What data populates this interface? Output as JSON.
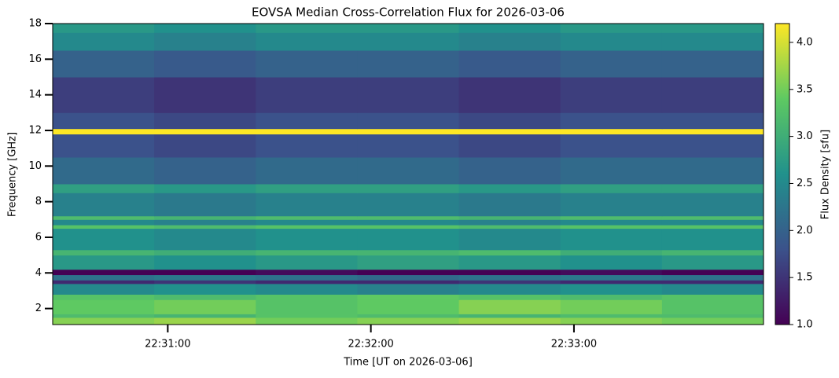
{
  "chart_data": {
    "type": "heatmap",
    "title": "EOVSA Median Cross-Correlation Flux for 2026-03-06",
    "x_label": "Time [UT on 2026-03-06]",
    "y_label": "Frequency [GHz]",
    "colorbar_label": "Flux Density [sfu]",
    "colormap": "viridis",
    "x_bins": [
      81026,
      81056,
      81086,
      81116,
      81146,
      81176,
      81206,
      81236
    ],
    "y_bins": [
      1.1,
      1.5,
      1.7,
      2.5,
      2.8,
      3.4,
      3.6,
      3.9,
      4.2,
      5.0,
      5.3,
      6.5,
      6.7,
      7.0,
      7.2,
      8.5,
      9.0,
      10.5,
      11.8,
      12.1,
      13.0,
      15.0,
      16.5,
      17.5,
      18.0
    ],
    "z": [
      [
        3.6,
        3.7,
        3.5,
        3.6,
        3.7,
        3.6,
        3.5
      ],
      [
        3.2,
        3.1,
        3.3,
        3.2,
        3.1,
        3.2,
        3.2
      ],
      [
        3.4,
        3.5,
        3.3,
        3.4,
        3.6,
        3.5,
        3.3
      ],
      [
        3.3,
        3.2,
        3.3,
        3.4,
        3.3,
        3.2,
        3.3
      ],
      [
        2.5,
        2.6,
        2.5,
        2.4,
        2.5,
        2.6,
        2.5
      ],
      [
        1.4,
        1.5,
        1.4,
        1.4,
        1.5,
        1.4,
        1.4
      ],
      [
        2.2,
        2.3,
        2.2,
        2.1,
        2.2,
        2.3,
        2.2
      ],
      [
        1.0,
        1.0,
        1.1,
        1.0,
        1.0,
        1.1,
        1.0
      ],
      [
        2.7,
        2.6,
        2.7,
        2.8,
        2.7,
        2.6,
        2.7
      ],
      [
        3.1,
        3.0,
        3.1,
        3.1,
        3.2,
        3.0,
        3.1
      ],
      [
        2.6,
        2.5,
        2.6,
        2.6,
        2.5,
        2.6,
        2.6
      ],
      [
        3.3,
        3.2,
        3.3,
        3.3,
        3.2,
        3.3,
        3.3
      ],
      [
        2.5,
        2.4,
        2.5,
        2.5,
        2.4,
        2.5,
        2.5
      ],
      [
        3.2,
        3.1,
        3.2,
        3.2,
        3.1,
        3.2,
        3.2
      ],
      [
        2.4,
        2.3,
        2.4,
        2.4,
        2.3,
        2.4,
        2.4
      ],
      [
        2.8,
        2.7,
        2.8,
        2.8,
        2.7,
        2.8,
        2.8
      ],
      [
        2.1,
        2.0,
        2.1,
        2.1,
        2.0,
        2.1,
        2.1
      ],
      [
        1.8,
        1.7,
        1.8,
        1.8,
        1.7,
        1.8,
        1.8
      ],
      [
        4.2,
        4.2,
        4.2,
        4.2,
        4.2,
        4.2,
        4.2
      ],
      [
        1.8,
        1.7,
        1.8,
        1.8,
        1.7,
        1.8,
        1.8
      ],
      [
        1.6,
        1.5,
        1.6,
        1.6,
        1.5,
        1.6,
        1.6
      ],
      [
        2.0,
        1.9,
        2.0,
        2.0,
        1.9,
        2.0,
        2.0
      ],
      [
        2.5,
        2.4,
        2.5,
        2.5,
        2.4,
        2.5,
        2.5
      ],
      [
        2.7,
        2.6,
        2.7,
        2.7,
        2.6,
        2.7,
        2.7
      ]
    ],
    "xlim": [
      81026,
      81236
    ],
    "xticks": [
      {
        "value": 81060,
        "label": "22:31:00"
      },
      {
        "value": 81120,
        "label": "22:32:00"
      },
      {
        "value": 81180,
        "label": "22:33:00"
      }
    ],
    "ylim": [
      1.1,
      18.0
    ],
    "yticks": [
      2,
      4,
      6,
      8,
      10,
      12,
      14,
      16,
      18
    ],
    "zlim": [
      1.0,
      4.2
    ],
    "zticks": [
      {
        "value": 1,
        "label": "1.0"
      },
      {
        "value": 1.5,
        "label": "1.5"
      },
      {
        "value": 2,
        "label": "2.0"
      },
      {
        "value": 2.5,
        "label": "2.5"
      },
      {
        "value": 3,
        "label": "3.0"
      },
      {
        "value": 3.5,
        "label": "3.5"
      },
      {
        "value": 4,
        "label": "4.0"
      }
    ]
  }
}
